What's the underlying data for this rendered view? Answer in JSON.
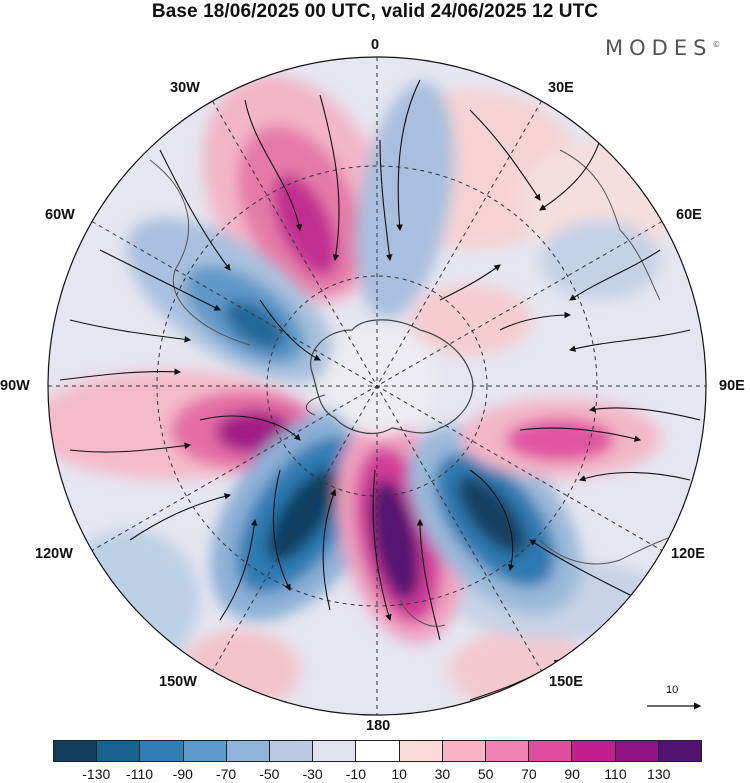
{
  "title": "Base 18/06/2025 00 UTC, valid 24/06/2025 12 UTC",
  "logo": "MODES",
  "logo_mark": "©",
  "longitude_labels": {
    "n0": "0",
    "n30e": "30E",
    "n60e": "60E",
    "n90e": "90E",
    "n120e": "120E",
    "n150e": "150E",
    "n180": "180",
    "n150w": "150W",
    "n120w": "120W",
    "n90w": "90W",
    "n60w": "60W",
    "n30w": "30W"
  },
  "reference_vector": "10",
  "colorbar": {
    "colors": [
      "#0e3d5e",
      "#17628f",
      "#2f7fb6",
      "#5b9ac9",
      "#8fb4d9",
      "#bac9e1",
      "#e3e3ef",
      "#ffffff",
      "#fbdada",
      "#f6b4c4",
      "#ef82b0",
      "#e04d9e",
      "#c11f8e",
      "#8f1380",
      "#521470"
    ],
    "labels": [
      "-130",
      "-110",
      "-90",
      "-70",
      "-50",
      "-30",
      "-10",
      "10",
      "30",
      "50",
      "70",
      "90",
      "110",
      "130"
    ]
  }
}
